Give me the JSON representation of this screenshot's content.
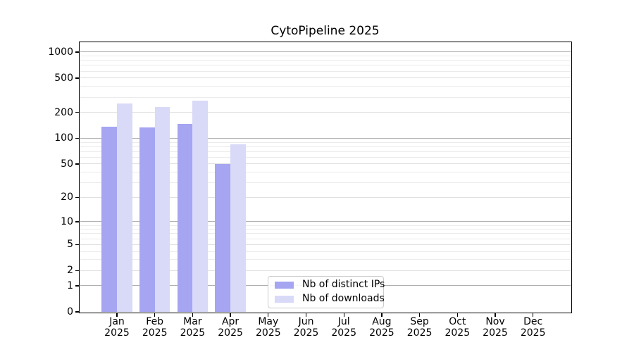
{
  "chart_data": {
    "type": "bar",
    "title": "CytoPipeline 2025",
    "x_tick_months": [
      "Jan",
      "Feb",
      "Mar",
      "Apr",
      "May",
      "Jun",
      "Jul",
      "Aug",
      "Sep",
      "Oct",
      "Nov",
      "Dec"
    ],
    "x_tick_year": "2025",
    "y_ticks": [
      0,
      1,
      2,
      5,
      10,
      20,
      50,
      100,
      200,
      500,
      1000
    ],
    "y_scale": "log1p",
    "ylim": [
      0,
      1300
    ],
    "grid": "on",
    "legend_position": "inside-bottom-center",
    "series": [
      {
        "name": "Nb of distinct IPs",
        "color": "#a5a5f2",
        "values": [
          136,
          134,
          148,
          50,
          null,
          null,
          null,
          null,
          null,
          null,
          null,
          null
        ]
      },
      {
        "name": "Nb of downloads",
        "color": "#d9d9f8",
        "values": [
          256,
          232,
          276,
          85,
          null,
          null,
          null,
          null,
          null,
          null,
          null,
          null
        ]
      }
    ],
    "colors": {
      "major_grid": "#b0b0b0",
      "labeled_minor_grid": "#e0e0e0",
      "minor_grid": "#ebebeb",
      "spine": "#000000",
      "text": "#000000",
      "background": "#ffffff"
    }
  }
}
